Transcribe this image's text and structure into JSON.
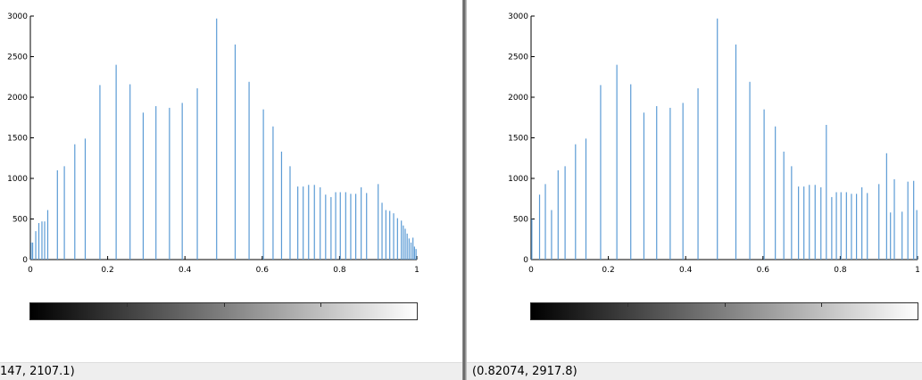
{
  "chart_data": [
    {
      "type": "bar",
      "title": "",
      "xlabel": "",
      "ylabel": "",
      "xlim": [
        0,
        1
      ],
      "ylim": [
        0,
        3000
      ],
      "x_ticks": [
        "0",
        "0.2",
        "0.4",
        "0.6",
        "0.8",
        "1"
      ],
      "y_ticks": [
        "0",
        "500",
        "1000",
        "1500",
        "2000",
        "2500",
        "3000"
      ],
      "bar_color": "#5b9bd5",
      "x": [
        0.002,
        0.006,
        0.014,
        0.022,
        0.03,
        0.037,
        0.045,
        0.053,
        0.07,
        0.088,
        0.115,
        0.142,
        0.18,
        0.222,
        0.258,
        0.292,
        0.325,
        0.36,
        0.393,
        0.432,
        0.482,
        0.53,
        0.566,
        0.603,
        0.628,
        0.65,
        0.672,
        0.692,
        0.706,
        0.72,
        0.735,
        0.75,
        0.764,
        0.778,
        0.79,
        0.802,
        0.816,
        0.829,
        0.842,
        0.856,
        0.87,
        0.88,
        0.9,
        0.91,
        0.92,
        0.93,
        0.94,
        0.95,
        0.96,
        0.965,
        0.97,
        0.975,
        0.98,
        0.985,
        0.99,
        0.994,
        0.998
      ],
      "values": [
        210,
        210,
        350,
        450,
        470,
        470,
        610,
        0,
        1100,
        1150,
        1420,
        1490,
        2150,
        2400,
        2160,
        1810,
        1890,
        1870,
        1930,
        2110,
        2970,
        2650,
        2190,
        1850,
        1640,
        1330,
        1150,
        900,
        900,
        920,
        920,
        890,
        800,
        770,
        830,
        830,
        830,
        810,
        810,
        890,
        820,
        0,
        930,
        700,
        610,
        600,
        570,
        510,
        480,
        420,
        380,
        320,
        260,
        210,
        270,
        160,
        130
      ]
    },
    {
      "type": "bar",
      "title": "",
      "xlabel": "",
      "ylabel": "",
      "xlim": [
        0,
        1
      ],
      "ylim": [
        0,
        3000
      ],
      "x_ticks": [
        "0",
        "0.2",
        "0.4",
        "0.6",
        "0.8",
        "1"
      ],
      "y_ticks": [
        "0",
        "500",
        "1000",
        "1500",
        "2000",
        "2500",
        "3000"
      ],
      "bar_color": "#5b9bd5",
      "x": [
        0.002,
        0.022,
        0.037,
        0.053,
        0.07,
        0.088,
        0.115,
        0.142,
        0.18,
        0.222,
        0.258,
        0.292,
        0.325,
        0.36,
        0.393,
        0.432,
        0.482,
        0.53,
        0.566,
        0.603,
        0.632,
        0.654,
        0.674,
        0.692,
        0.706,
        0.72,
        0.735,
        0.75,
        0.764,
        0.778,
        0.79,
        0.802,
        0.816,
        0.829,
        0.842,
        0.856,
        0.87,
        0.9,
        0.92,
        0.93,
        0.94,
        0.96,
        0.975,
        0.99,
        0.998
      ],
      "values": [
        500,
        800,
        930,
        610,
        1100,
        1150,
        1420,
        1490,
        2150,
        2400,
        2160,
        1810,
        1890,
        1870,
        1930,
        2110,
        2970,
        2650,
        2190,
        1850,
        1640,
        1330,
        1150,
        900,
        900,
        920,
        920,
        890,
        1660,
        770,
        830,
        830,
        830,
        810,
        810,
        890,
        820,
        930,
        1310,
        580,
        990,
        590,
        960,
        970,
        610
      ]
    }
  ],
  "status": {
    "left": "147, 2107.1)",
    "right": "(0.82074, 2917.8)"
  }
}
